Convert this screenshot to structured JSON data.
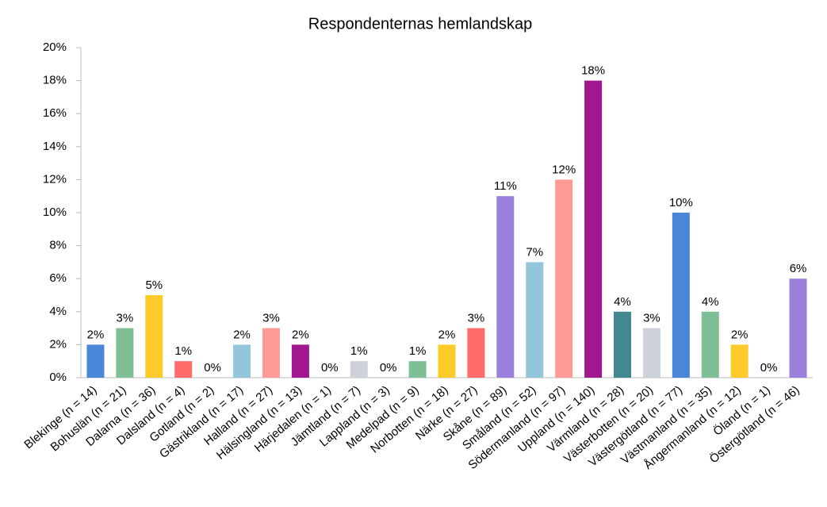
{
  "chart_data": {
    "type": "bar",
    "title": "Respondenternas hemlandskap",
    "categories": [
      "Blekinge (n = 14)",
      "Bohuslän (n = 21)",
      "Dalarna (n = 36)",
      "Dalsland (n = 4)",
      "Gotland (n = 2)",
      "Gästrikland (n = 17)",
      "Halland (n = 27)",
      "Hälsingland (n = 13)",
      "Härjedalen (n = 1)",
      "Jämtland (n = 7)",
      "Lappland (n = 3)",
      "Medelpad (n = 9)",
      "Norbotten (n = 18)",
      "Närke (n = 27)",
      "Skåne (n = 89)",
      "Småland (n = 52)",
      "Södermanland (n = 97)",
      "Uppland (n = 140)",
      "Värmland (n = 28)",
      "Västerbotten (n = 20)",
      "Västergötland (n = 77)",
      "Västmanland (n = 35)",
      "Ångermanland (n = 12)",
      "Öland (n = 1)",
      "Östergötland (n = 46)"
    ],
    "values": [
      2,
      3,
      5,
      1,
      0,
      2,
      3,
      2,
      0,
      1,
      0,
      1,
      2,
      3,
      11,
      7,
      12,
      18,
      4,
      3,
      10,
      4,
      2,
      0,
      6
    ],
    "value_labels": [
      "2%",
      "3%",
      "5%",
      "1%",
      "0%",
      "2%",
      "3%",
      "2%",
      "0%",
      "1%",
      "0%",
      "1%",
      "2%",
      "3%",
      "11%",
      "7%",
      "12%",
      "18%",
      "4%",
      "3%",
      "10%",
      "4%",
      "2%",
      "0%",
      "6%"
    ],
    "colors": [
      "#4a86d8",
      "#7fbf96",
      "#fccb2a",
      "#ff6b6b",
      "#9b7fdc",
      "#93c6da",
      "#ff9a94",
      "#a0178f",
      "#438790",
      "#cdd2da",
      "#4a86d8",
      "#7fbf96",
      "#fccb2a",
      "#ff6b6b",
      "#9b7fdc",
      "#93c6da",
      "#ff9a94",
      "#a0178f",
      "#438790",
      "#cdd2da",
      "#4a86d8",
      "#7fbf96",
      "#fccb2a",
      "#ff6b6b",
      "#9b7fdc"
    ],
    "ylim": [
      0,
      20
    ],
    "yticks": [
      {
        "value": 0,
        "label": "0%"
      },
      {
        "value": 2,
        "label": "2%"
      },
      {
        "value": 4,
        "label": "4%"
      },
      {
        "value": 6,
        "label": "6%"
      },
      {
        "value": 8,
        "label": "8%"
      },
      {
        "value": 10,
        "label": "10%"
      },
      {
        "value": 12,
        "label": "12%"
      },
      {
        "value": 14,
        "label": "14%"
      },
      {
        "value": 16,
        "label": "16%"
      },
      {
        "value": 18,
        "label": "18%"
      },
      {
        "value": 20,
        "label": "20%"
      }
    ],
    "grid": false
  }
}
